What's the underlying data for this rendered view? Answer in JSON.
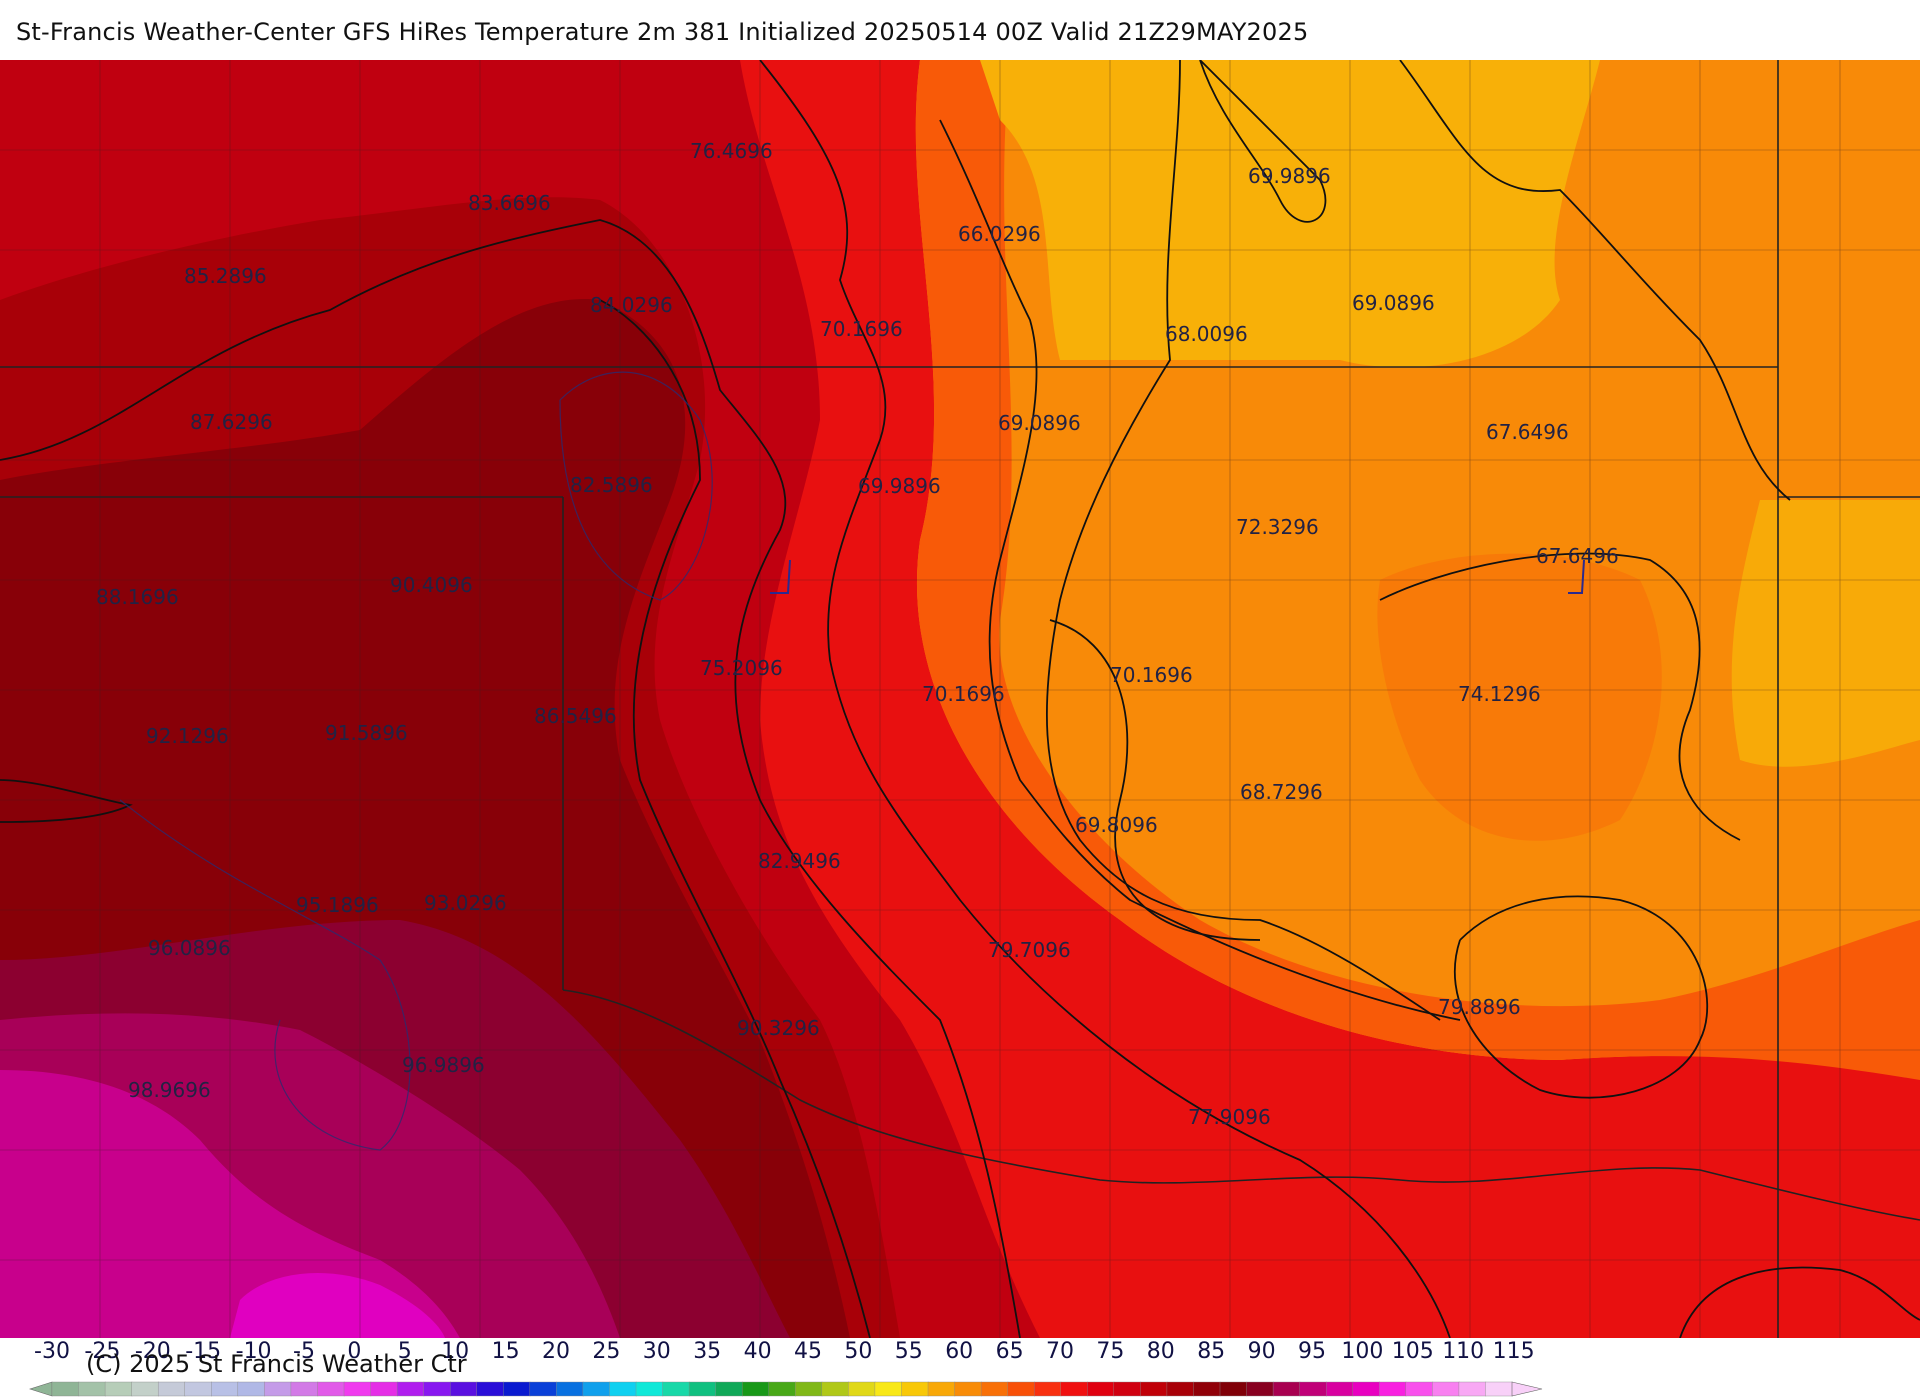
{
  "title": "St-Francis Weather-Center GFS HiRes Temperature 2m  381 Initialized 20250514 00Z Valid 21Z29MAY2025",
  "copyright": "(C) 2025 St Francis Weather Ctr",
  "map_labels": [
    "76.4696",
    "83.6696",
    "85.2896",
    "84.0296",
    "87.6296",
    "82.5896",
    "88.1696",
    "90.4096",
    "92.1296",
    "91.5896",
    "86.5496",
    "75.2096",
    "95.1896",
    "93.0296",
    "96.0896",
    "96.9896",
    "98.9696",
    "90.3296",
    "82.9496",
    "79.7096",
    "77.9096",
    "66.0296",
    "70.1696",
    "69.0896",
    "69.9896",
    "68.0096",
    "69.9896",
    "69.0896",
    "67.6496",
    "72.3296",
    "67.6496",
    "70.1696",
    "70.1696",
    "74.1296",
    "68.7296",
    "69.8096",
    "79.8896"
  ],
  "scale": {
    "ticks": [
      "-30",
      "-25",
      "-20",
      "-15",
      "-10",
      "-5",
      "0",
      "5",
      "10",
      "15",
      "20",
      "25",
      "30",
      "35",
      "40",
      "45",
      "50",
      "55",
      "60",
      "65",
      "70",
      "75",
      "80",
      "85",
      "90",
      "95",
      "100",
      "105",
      "110",
      "115"
    ],
    "colors": [
      "#8fb596",
      "#a3c2a8",
      "#b6cdb8",
      "#c3d0c9",
      "#c5cad8",
      "#c2c7e0",
      "#b8c0e6",
      "#b0b8e6",
      "#c49be8",
      "#d27ae6",
      "#e15ae8",
      "#f03aee",
      "#e52ee6",
      "#b01eee",
      "#8818f0",
      "#5a10e0",
      "#2a0ed8",
      "#0a1ad0",
      "#0a40d8",
      "#0870e0",
      "#10a0ec",
      "#10d0f0",
      "#10e8d8",
      "#18d8a8",
      "#10c080",
      "#10a858",
      "#189818",
      "#48a818",
      "#80b818",
      "#b0c818",
      "#e0d818",
      "#f8e818",
      "#f8c808",
      "#f8a808",
      "#f88c08",
      "#f87008",
      "#f85008",
      "#f83010",
      "#f01010",
      "#e00010",
      "#d00010",
      "#c00008",
      "#a80008",
      "#900008",
      "#800008",
      "#880020",
      "#a80050",
      "#c00078",
      "#d800a0",
      "#e800c0",
      "#f820e0",
      "#f850ec",
      "#f880f0",
      "#f8a8f4",
      "#f8d0f8"
    ]
  }
}
